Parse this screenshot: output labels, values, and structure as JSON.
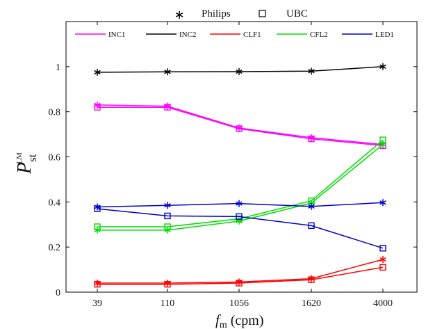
{
  "chart_data": {
    "type": "line",
    "title": "",
    "xlabel": {
      "main": "f",
      "sub": "m",
      "unit": "(cpm)"
    },
    "ylabel": {
      "main": "P",
      "sub": "st",
      "sup": "LM"
    },
    "categories": [
      "39",
      "110",
      "1056",
      "1620",
      "4000"
    ],
    "ylim": [
      0,
      1.2
    ],
    "yticks": [
      0,
      0.2,
      0.4,
      0.6,
      0.8,
      1
    ],
    "ytick_labels": [
      "0",
      "0.2",
      "0.4",
      "0.6",
      "0.8",
      "1"
    ],
    "grid": false,
    "marker_legend": [
      {
        "label": "Philips",
        "marker": "star"
      },
      {
        "label": "UBC",
        "marker": "square"
      }
    ],
    "legend_position": "top-inside",
    "series": [
      {
        "name": "INC1",
        "color": "#ff00ff",
        "philips": [
          0.83,
          0.825,
          0.728,
          0.685,
          0.655
        ],
        "ubc": [
          0.82,
          0.82,
          0.725,
          0.68,
          0.65
        ]
      },
      {
        "name": "INC2",
        "color": "#000000",
        "philips": [
          0.975,
          0.977,
          0.978,
          0.98,
          1.0
        ],
        "ubc": null
      },
      {
        "name": "CLF1",
        "color": "#ff0000",
        "philips": [
          0.04,
          0.04,
          0.045,
          0.06,
          0.145
        ],
        "ubc": [
          0.035,
          0.035,
          0.04,
          0.055,
          0.11
        ]
      },
      {
        "name": "CFL2",
        "color": "#00dd00",
        "philips": [
          0.275,
          0.275,
          0.315,
          0.395,
          0.655
        ],
        "ubc": [
          0.29,
          0.29,
          0.325,
          0.405,
          0.675
        ]
      },
      {
        "name": "LED1",
        "color": "#0000cc",
        "philips": [
          0.378,
          0.385,
          0.393,
          0.38,
          0.397
        ],
        "ubc": [
          0.37,
          0.338,
          0.335,
          0.295,
          0.195
        ]
      }
    ]
  }
}
